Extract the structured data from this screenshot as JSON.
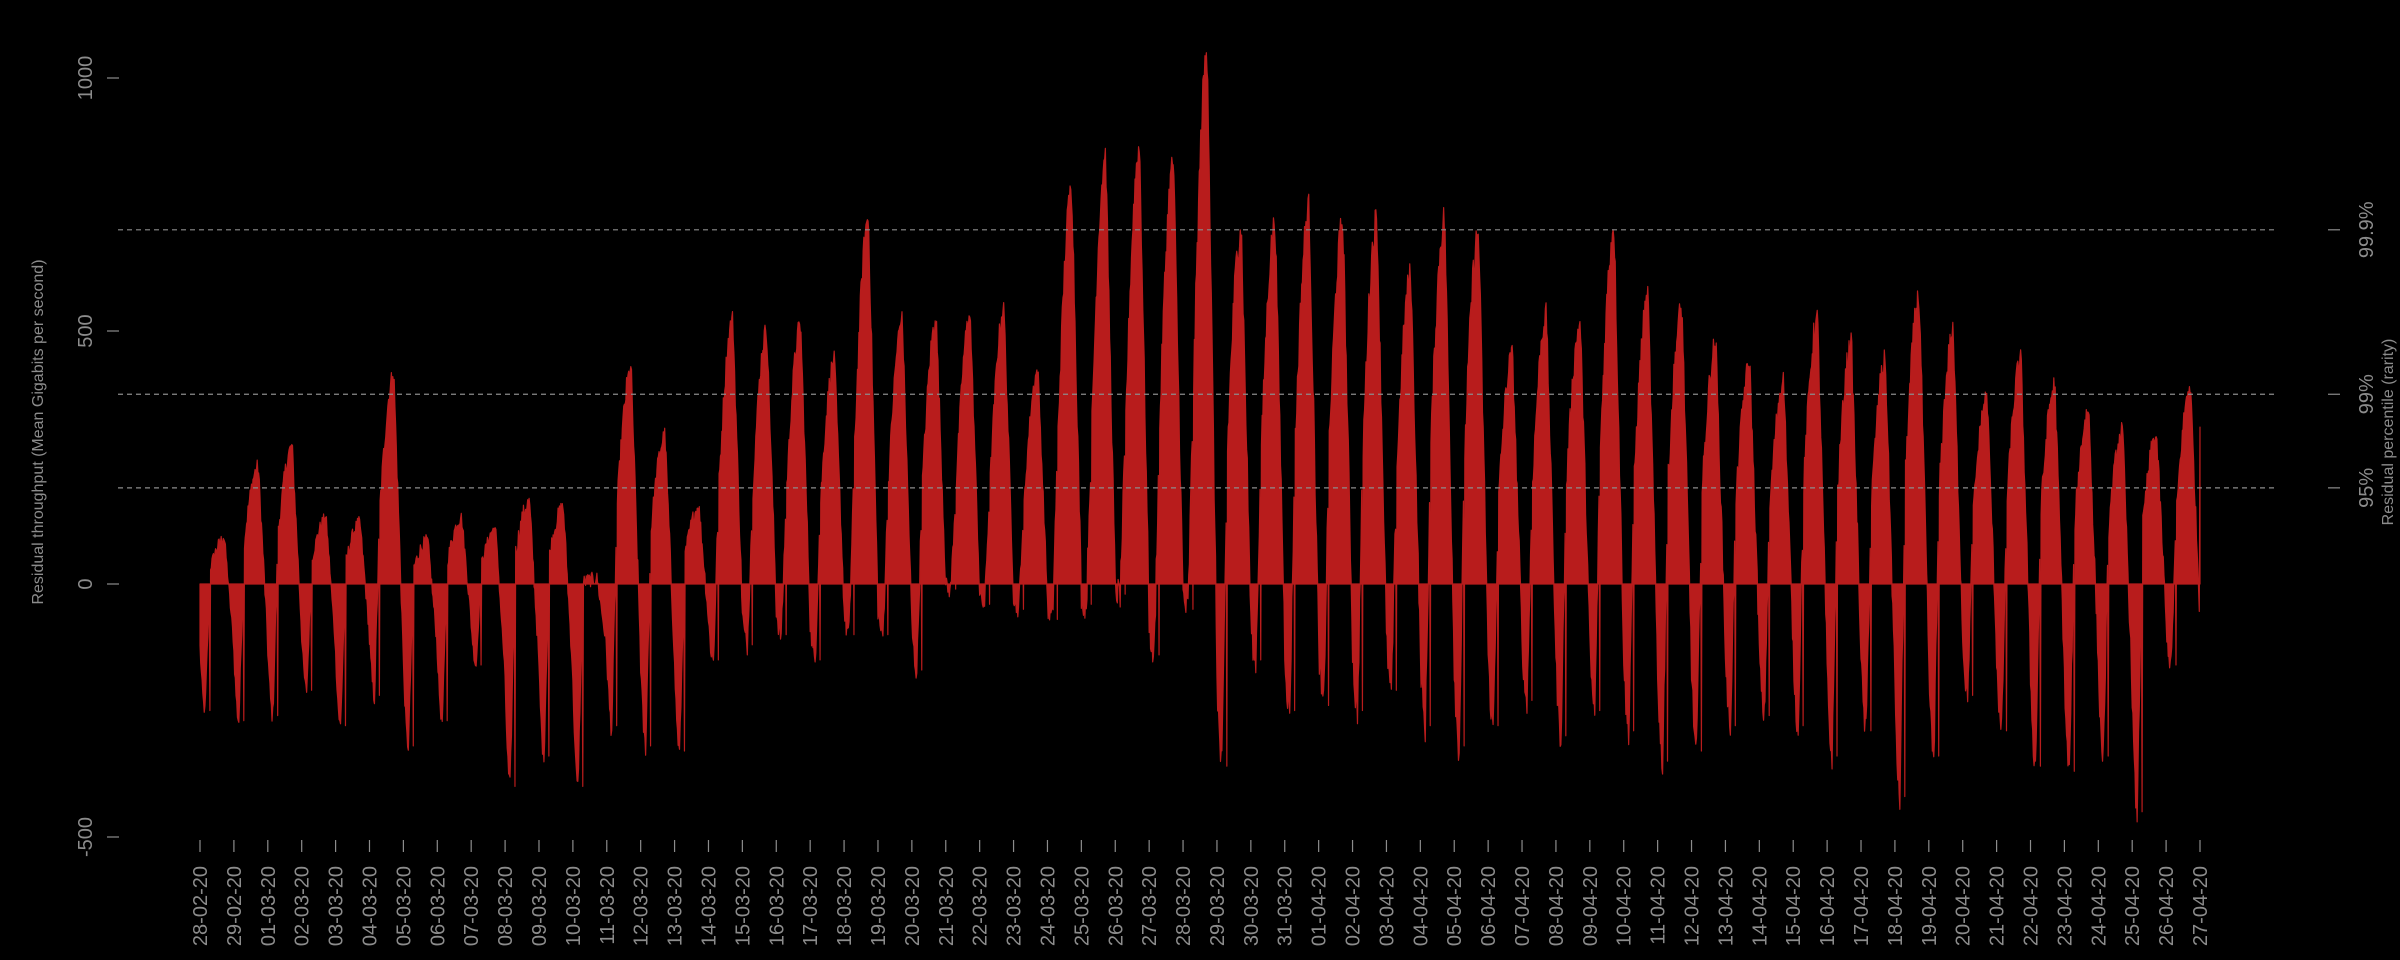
{
  "chart_data": {
    "type": "area",
    "title": "",
    "ylabel": "Residual throughput (Mean Gigabits per second)",
    "ylabel_right": "Residual percentile (rarity)",
    "ylim": [
      -500,
      1050
    ],
    "yticks": [
      -500,
      0,
      500,
      1000
    ],
    "xlim": [
      "2020-02-28",
      "2020-04-27"
    ],
    "fill_color": "#b81c1c",
    "background": "#000000",
    "text_color": "#8c8c8c",
    "grid": false,
    "legend": "none",
    "x_tick_labels": [
      "28-02-20",
      "29-02-20",
      "01-03-20",
      "02-03-20",
      "03-03-20",
      "04-03-20",
      "05-03-20",
      "06-03-20",
      "07-03-20",
      "08-03-20",
      "09-03-20",
      "10-03-20",
      "11-03-20",
      "12-03-20",
      "13-03-20",
      "14-03-20",
      "15-03-20",
      "16-03-20",
      "17-03-20",
      "18-03-20",
      "19-03-20",
      "20-03-20",
      "21-03-20",
      "22-03-20",
      "23-03-20",
      "24-03-20",
      "25-03-20",
      "26-03-20",
      "27-03-20",
      "28-03-20",
      "29-03-20",
      "30-03-20",
      "31-03-20",
      "01-04-20",
      "02-04-20",
      "03-04-20",
      "04-04-20",
      "05-04-20",
      "06-04-20",
      "07-04-20",
      "08-04-20",
      "09-04-20",
      "10-04-20",
      "11-04-20",
      "12-04-20",
      "13-04-20",
      "14-04-20",
      "15-04-20",
      "16-04-20",
      "17-04-20",
      "18-04-20",
      "19-04-20",
      "20-04-20",
      "21-04-20",
      "22-04-20",
      "23-04-20",
      "24-04-20",
      "25-04-20",
      "26-04-20",
      "27-04-20"
    ],
    "percentile_lines": [
      {
        "label": "95%",
        "value": 190
      },
      {
        "label": "99%",
        "value": 375
      },
      {
        "label": "99.9%",
        "value": 700
      }
    ],
    "series": [
      {
        "daily_peaks": [
          90,
          230,
          270,
          130,
          120,
          410,
          85,
          130,
          110,
          160,
          150,
          10,
          420,
          290,
          150,
          520,
          500,
          510,
          440,
          720,
          520,
          520,
          530,
          540,
          420,
          780,
          840,
          860,
          830,
          1050,
          700,
          710,
          740,
          710,
          720,
          610,
          720,
          690,
          450,
          530,
          510,
          700,
          560,
          540,
          470,
          430,
          400,
          520,
          470,
          440,
          560,
          490,
          370,
          440,
          390,
          340,
          300,
          290,
          390,
          480
        ],
        "daily_troughs": [
          -250,
          -270,
          -260,
          -210,
          -280,
          -220,
          -320,
          -270,
          -160,
          -400,
          -340,
          -400,
          -280,
          -320,
          -330,
          -150,
          -120,
          -100,
          -150,
          -100,
          -100,
          -170,
          -10,
          -40,
          -50,
          -70,
          -40,
          -20,
          -140,
          -50,
          -360,
          -150,
          -250,
          -240,
          -250,
          -210,
          -280,
          -320,
          -280,
          -230,
          -300,
          -250,
          -290,
          -350,
          -330,
          -280,
          -260,
          -280,
          -340,
          -290,
          -420,
          -340,
          -220,
          -290,
          -360,
          -370,
          -340,
          -450,
          -160,
          -440
        ],
        "final_value": 310
      }
    ]
  }
}
